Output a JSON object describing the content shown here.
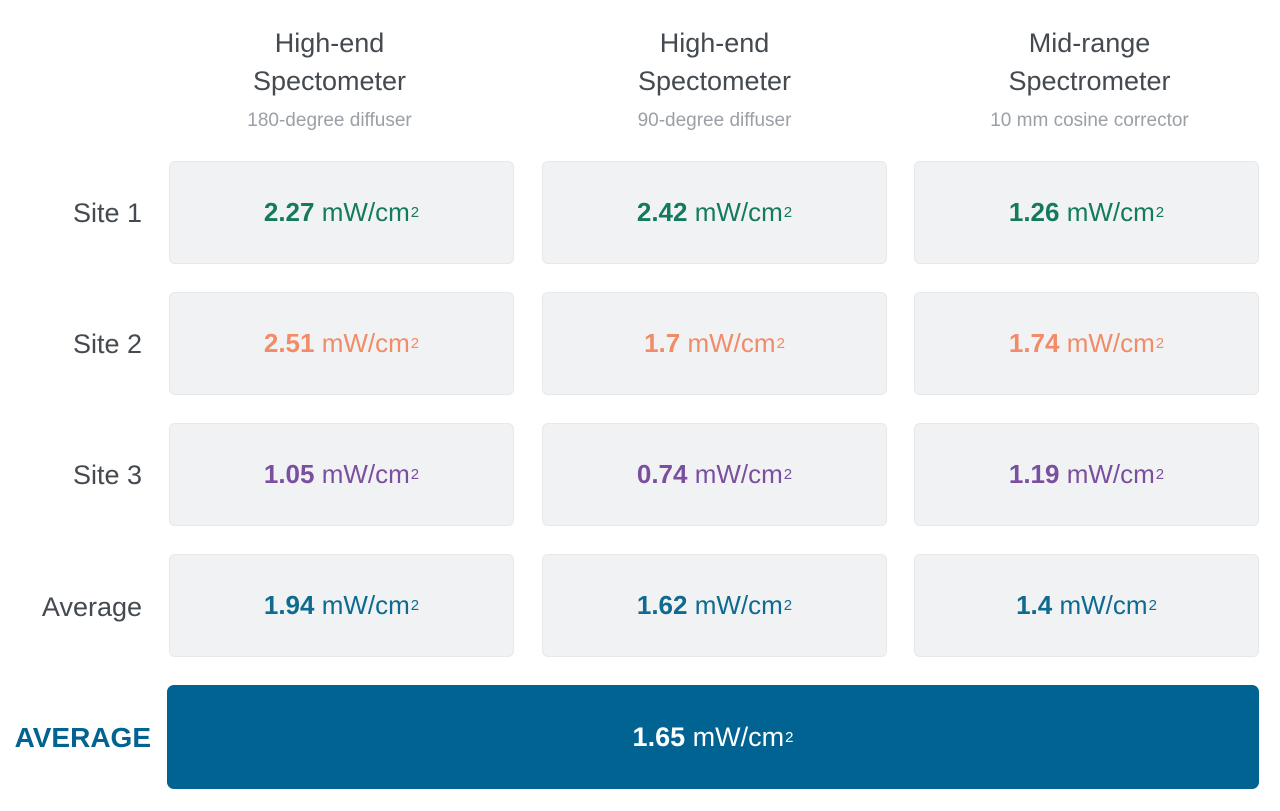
{
  "columns": [
    {
      "title_line1": "High-end",
      "title_line2": "Spectometer",
      "subtitle": "180-degree diffuser"
    },
    {
      "title_line1": "High-end",
      "title_line2": "Spectometer",
      "subtitle": "90-degree diffuser"
    },
    {
      "title_line1": "Mid-range",
      "title_line2": "Spectrometer",
      "subtitle": "10 mm cosine corrector"
    }
  ],
  "unit": "mW/cm",
  "unit_exponent": "2",
  "rows": [
    {
      "label": "Site 1",
      "color": "#137a5e",
      "values": [
        "2.27",
        "2.42",
        "1.26"
      ]
    },
    {
      "label": "Site 2",
      "color": "#f18b68",
      "values": [
        "2.51",
        "1.7",
        "1.74"
      ]
    },
    {
      "label": "Site 3",
      "color": "#7b4fa0",
      "values": [
        "1.05",
        "0.74",
        "1.19"
      ]
    },
    {
      "label": "Average",
      "color": "#0e6a8f",
      "values": [
        "1.94",
        "1.62",
        "1.4"
      ]
    }
  ],
  "overall": {
    "label": "AVERAGE",
    "value": "1.65",
    "color": "#006391"
  }
}
